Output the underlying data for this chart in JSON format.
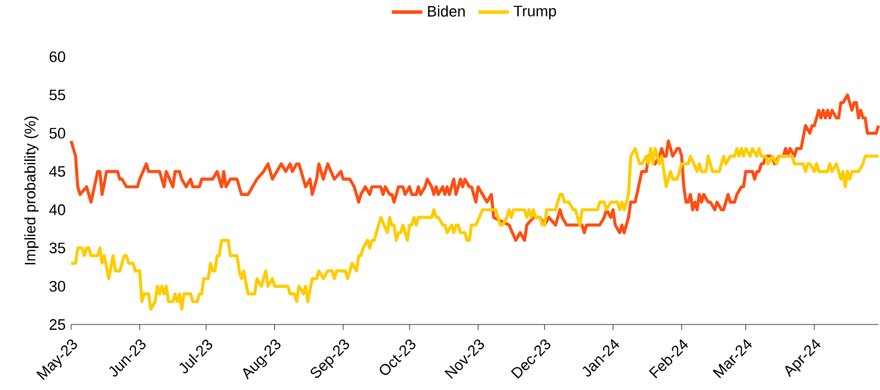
{
  "chart_data": {
    "type": "line",
    "ylabel": "Implied probability (%)",
    "legend": "top",
    "xlim": [
      "2023-05-01",
      "2024-04-30"
    ],
    "ylim": [
      25,
      60
    ],
    "yticks": [
      25,
      30,
      35,
      40,
      45,
      50,
      55,
      60
    ],
    "xticks": [
      {
        "value": "2023-05-01",
        "label": "May-23"
      },
      {
        "value": "2023-06-01",
        "label": "Jun-23"
      },
      {
        "value": "2023-07-01",
        "label": "Jul-23"
      },
      {
        "value": "2023-08-01",
        "label": "Aug-23"
      },
      {
        "value": "2023-09-01",
        "label": "Sep-23"
      },
      {
        "value": "2023-10-01",
        "label": "Oct-23"
      },
      {
        "value": "2023-11-01",
        "label": "Nov-23"
      },
      {
        "value": "2023-12-01",
        "label": "Dec-23"
      },
      {
        "value": "2024-01-01",
        "label": "Jan-24"
      },
      {
        "value": "2024-02-01",
        "label": "Feb-24"
      },
      {
        "value": "2024-03-01",
        "label": "Mar-24"
      },
      {
        "value": "2024-04-01",
        "label": "Apr-24"
      }
    ],
    "series": [
      {
        "name": "Biden",
        "color": "#ff4e14",
        "x": [
          "2023-05-01",
          "2023-05-03",
          "2023-05-04",
          "2023-05-05",
          "2023-05-08",
          "2023-05-10",
          "2023-05-13",
          "2023-05-14",
          "2023-05-15",
          "2023-05-17",
          "2023-05-22",
          "2023-05-23",
          "2023-05-24",
          "2023-05-26",
          "2023-05-31",
          "2023-06-01",
          "2023-06-04",
          "2023-06-05",
          "2023-06-10",
          "2023-06-12",
          "2023-06-13",
          "2023-06-16",
          "2023-06-17",
          "2023-06-19",
          "2023-06-20",
          "2023-06-22",
          "2023-06-24",
          "2023-06-25",
          "2023-06-28",
          "2023-06-29",
          "2023-07-04",
          "2023-07-06",
          "2023-07-08",
          "2023-07-09",
          "2023-07-10",
          "2023-07-12",
          "2023-07-15",
          "2023-07-17",
          "2023-07-20",
          "2023-07-22",
          "2023-07-24",
          "2023-07-27",
          "2023-07-29",
          "2023-07-31",
          "2023-08-02",
          "2023-08-04",
          "2023-08-06",
          "2023-08-08",
          "2023-08-09",
          "2023-08-11",
          "2023-08-12",
          "2023-08-15",
          "2023-08-17",
          "2023-08-18",
          "2023-08-20",
          "2023-08-21",
          "2023-08-23",
          "2023-08-25",
          "2023-08-28",
          "2023-08-31",
          "2023-09-01",
          "2023-09-04",
          "2023-09-06",
          "2023-09-08",
          "2023-09-09",
          "2023-09-11",
          "2023-09-13",
          "2023-09-14",
          "2023-09-18",
          "2023-09-19",
          "2023-09-20",
          "2023-09-22",
          "2023-09-23",
          "2023-09-24",
          "2023-09-26",
          "2023-09-28",
          "2023-09-29",
          "2023-10-01",
          "2023-10-02",
          "2023-10-04",
          "2023-10-05",
          "2023-10-06",
          "2023-10-08",
          "2023-10-09",
          "2023-10-11",
          "2023-10-12",
          "2023-10-13",
          "2023-10-14",
          "2023-10-16",
          "2023-10-17",
          "2023-10-18",
          "2023-10-19",
          "2023-10-21",
          "2023-10-22",
          "2023-10-24",
          "2023-10-25",
          "2023-10-26",
          "2023-10-28",
          "2023-10-29",
          "2023-10-31",
          "2023-11-01",
          "2023-11-03",
          "2023-11-05",
          "2023-11-07",
          "2023-11-08",
          "2023-11-15",
          "2023-11-18",
          "2023-11-20",
          "2023-11-22",
          "2023-11-23",
          "2023-11-26",
          "2023-11-29",
          "2023-12-01",
          "2023-12-03",
          "2023-12-06",
          "2023-12-08",
          "2023-12-09",
          "2023-12-11",
          "2023-12-18",
          "2023-12-19",
          "2023-12-20",
          "2023-12-26",
          "2023-12-28",
          "2023-12-29",
          "2023-12-31",
          "2024-01-01",
          "2024-01-02",
          "2024-01-04",
          "2024-01-05",
          "2024-01-06",
          "2024-01-08",
          "2024-01-09",
          "2024-01-11",
          "2024-01-14",
          "2024-01-16",
          "2024-01-17",
          "2024-01-18",
          "2024-01-20",
          "2024-01-22",
          "2024-01-23",
          "2024-01-24",
          "2024-01-25",
          "2024-01-26",
          "2024-01-28",
          "2024-01-30",
          "2024-01-31",
          "2024-02-01",
          "2024-02-02",
          "2024-02-03",
          "2024-02-04",
          "2024-02-05",
          "2024-02-06",
          "2024-02-07",
          "2024-02-08",
          "2024-02-09",
          "2024-02-10",
          "2024-02-11",
          "2024-02-13",
          "2024-02-14",
          "2024-02-16",
          "2024-02-17",
          "2024-02-19",
          "2024-02-20",
          "2024-02-22",
          "2024-02-23",
          "2024-02-25",
          "2024-02-26",
          "2024-02-28",
          "2024-02-29",
          "2024-03-01",
          "2024-03-04",
          "2024-03-05",
          "2024-03-06",
          "2024-03-07",
          "2024-03-08",
          "2024-03-09",
          "2024-03-10",
          "2024-03-13",
          "2024-03-14",
          "2024-03-16",
          "2024-03-18",
          "2024-03-19",
          "2024-03-20",
          "2024-03-21",
          "2024-03-23",
          "2024-03-24",
          "2024-03-26",
          "2024-03-28",
          "2024-03-30",
          "2024-03-31",
          "2024-04-01",
          "2024-04-03",
          "2024-04-04",
          "2024-04-05",
          "2024-04-06",
          "2024-04-07",
          "2024-04-08",
          "2024-04-09",
          "2024-04-11",
          "2024-04-12",
          "2024-04-13",
          "2024-04-14",
          "2024-04-16",
          "2024-04-18",
          "2024-04-19",
          "2024-04-20",
          "2024-04-21",
          "2024-04-22",
          "2024-04-23",
          "2024-04-24",
          "2024-04-25",
          "2024-04-29",
          "2024-04-30"
        ],
        "values": [
          49,
          47,
          43,
          42,
          43,
          41,
          45,
          45,
          42,
          45,
          45,
          44,
          44,
          43,
          43,
          44,
          46,
          45,
          45,
          43,
          45,
          43,
          45,
          45,
          44,
          43,
          44,
          43,
          43,
          44,
          44,
          45,
          43,
          45,
          43,
          44,
          44,
          42,
          42,
          43,
          44,
          45,
          46,
          44,
          45,
          46,
          45,
          46,
          45,
          46,
          46,
          43,
          44,
          42,
          44,
          46,
          44,
          46,
          44,
          45,
          44,
          44,
          43,
          41,
          42,
          43,
          42,
          43,
          43,
          42,
          43,
          42,
          42,
          41,
          43,
          43,
          42,
          43,
          42,
          42,
          43,
          42,
          43,
          44,
          43,
          42,
          43,
          42,
          43,
          42,
          43,
          42,
          44,
          42,
          44,
          43,
          44,
          43,
          43,
          41,
          43,
          42,
          41,
          42,
          39,
          38,
          36,
          37,
          36,
          38,
          39,
          39,
          38,
          39,
          38,
          40,
          39,
          38,
          38,
          37,
          38,
          38,
          39,
          40,
          39,
          40,
          38,
          37,
          38,
          37,
          39,
          41,
          41,
          45,
          45,
          47,
          47,
          46,
          47,
          48,
          47,
          47,
          49,
          47,
          48,
          48,
          47,
          43,
          41,
          41,
          42,
          40,
          41,
          40,
          42,
          41,
          42,
          41,
          41,
          40,
          41,
          40,
          40,
          42,
          41,
          41,
          42,
          43,
          43,
          45,
          45,
          44,
          45,
          45,
          46,
          46,
          47,
          47,
          46,
          47,
          47,
          48,
          47,
          48,
          47,
          48,
          48,
          51,
          50,
          51,
          51,
          53,
          52,
          53,
          52,
          53,
          52,
          53,
          52,
          52,
          54,
          54,
          55,
          53,
          54,
          54,
          52,
          53,
          52,
          52,
          50,
          50,
          51
        ]
      },
      {
        "name": "Trump",
        "color": "#ffcc00",
        "x": [
          "2023-05-01",
          "2023-05-03",
          "2023-05-04",
          "2023-05-06",
          "2023-05-07",
          "2023-05-08",
          "2023-05-09",
          "2023-05-10",
          "2023-05-13",
          "2023-05-14",
          "2023-05-15",
          "2023-05-16",
          "2023-05-18",
          "2023-05-20",
          "2023-05-21",
          "2023-05-23",
          "2023-05-24",
          "2023-05-25",
          "2023-05-26",
          "2023-05-27",
          "2023-05-29",
          "2023-05-30",
          "2023-06-01",
          "2023-06-02",
          "2023-06-03",
          "2023-06-05",
          "2023-06-06",
          "2023-06-08",
          "2023-06-09",
          "2023-06-10",
          "2023-06-11",
          "2023-06-12",
          "2023-06-13",
          "2023-06-14",
          "2023-06-16",
          "2023-06-17",
          "2023-06-18",
          "2023-06-19",
          "2023-06-20",
          "2023-06-21",
          "2023-06-24",
          "2023-06-25",
          "2023-06-27",
          "2023-06-28",
          "2023-06-29",
          "2023-06-30",
          "2023-07-02",
          "2023-07-03",
          "2023-07-04",
          "2023-07-05",
          "2023-07-06",
          "2023-07-07",
          "2023-07-08",
          "2023-07-11",
          "2023-07-12",
          "2023-07-15",
          "2023-07-16",
          "2023-07-17",
          "2023-07-18",
          "2023-07-20",
          "2023-07-23",
          "2023-07-24",
          "2023-07-26",
          "2023-07-28",
          "2023-07-29",
          "2023-07-31",
          "2023-08-01",
          "2023-08-07",
          "2023-08-08",
          "2023-08-10",
          "2023-08-11",
          "2023-08-12",
          "2023-08-14",
          "2023-08-15",
          "2023-08-16",
          "2023-08-18",
          "2023-08-20",
          "2023-08-21",
          "2023-08-23",
          "2023-08-25",
          "2023-08-27",
          "2023-08-28",
          "2023-08-29",
          "2023-09-02",
          "2023-09-03",
          "2023-09-05",
          "2023-09-07",
          "2023-09-08",
          "2023-09-09",
          "2023-09-10",
          "2023-09-12",
          "2023-09-13",
          "2023-09-14",
          "2023-09-15",
          "2023-09-18",
          "2023-09-21",
          "2023-09-22",
          "2023-09-23",
          "2023-09-24",
          "2023-09-25",
          "2023-09-26",
          "2023-09-27",
          "2023-09-28",
          "2023-09-30",
          "2023-10-01",
          "2023-10-02",
          "2023-10-03",
          "2023-10-04",
          "2023-10-05",
          "2023-10-11",
          "2023-10-12",
          "2023-10-13",
          "2023-10-14",
          "2023-10-16",
          "2023-10-17",
          "2023-10-18",
          "2023-10-20",
          "2023-10-21",
          "2023-10-22",
          "2023-10-23",
          "2023-10-24",
          "2023-10-26",
          "2023-10-27",
          "2023-10-28",
          "2023-10-29",
          "2023-10-31",
          "2023-11-03",
          "2023-11-09",
          "2023-11-11",
          "2023-11-12",
          "2023-11-14",
          "2023-11-15",
          "2023-11-16",
          "2023-11-17",
          "2023-11-22",
          "2023-11-23",
          "2023-11-24",
          "2023-11-25",
          "2023-11-26",
          "2023-11-27",
          "2023-11-29",
          "2023-11-30",
          "2023-12-01",
          "2023-12-02",
          "2023-12-06",
          "2023-12-08",
          "2023-12-09",
          "2023-12-10",
          "2023-12-12",
          "2023-12-14",
          "2023-12-15",
          "2023-12-17",
          "2023-12-18",
          "2023-12-25",
          "2023-12-26",
          "2023-12-28",
          "2023-12-29",
          "2023-12-31",
          "2024-01-03",
          "2024-01-04",
          "2024-01-05",
          "2024-01-06",
          "2024-01-07",
          "2024-01-08",
          "2024-01-09",
          "2024-01-11",
          "2024-01-12",
          "2024-01-13",
          "2024-01-14",
          "2024-01-16",
          "2024-01-17",
          "2024-01-18",
          "2024-01-19",
          "2024-01-20",
          "2024-01-22",
          "2024-01-23",
          "2024-01-24",
          "2024-01-25",
          "2024-01-27",
          "2024-01-28",
          "2024-01-30",
          "2024-02-01",
          "2024-02-04",
          "2024-02-05",
          "2024-02-08",
          "2024-02-09",
          "2024-02-10",
          "2024-02-12",
          "2024-02-13",
          "2024-02-15",
          "2024-02-18",
          "2024-02-20",
          "2024-02-21",
          "2024-02-23",
          "2024-02-25",
          "2024-02-26",
          "2024-02-27",
          "2024-02-28",
          "2024-02-29",
          "2024-03-01",
          "2024-03-03",
          "2024-03-04",
          "2024-03-06",
          "2024-03-07",
          "2024-03-08",
          "2024-03-10",
          "2024-03-11",
          "2024-03-13",
          "2024-03-15",
          "2024-03-16",
          "2024-03-22",
          "2024-03-23",
          "2024-03-27",
          "2024-03-28",
          "2024-03-29",
          "2024-03-30",
          "2024-04-01",
          "2024-04-02",
          "2024-04-03",
          "2024-04-07",
          "2024-04-08",
          "2024-04-09",
          "2024-04-11",
          "2024-04-13",
          "2024-04-14",
          "2024-04-15",
          "2024-04-16",
          "2024-04-17",
          "2024-04-18",
          "2024-04-21",
          "2024-04-23",
          "2024-04-24",
          "2024-04-30"
        ],
        "values": [
          33,
          33,
          35,
          35,
          34,
          35,
          35,
          34,
          34,
          35,
          33,
          34,
          31,
          34,
          32,
          32,
          33,
          34,
          34,
          33,
          33,
          32,
          32,
          28,
          29,
          29,
          27,
          28,
          30,
          29,
          30,
          29,
          30,
          28,
          28,
          29,
          28,
          29,
          27,
          29,
          29,
          28,
          28,
          29,
          29,
          31,
          31,
          33,
          32,
          32,
          34,
          34,
          36,
          36,
          34,
          34,
          32,
          31,
          32,
          29,
          29,
          31,
          30,
          32,
          30,
          31,
          30,
          30,
          29,
          29,
          28,
          30,
          29,
          30,
          28,
          31,
          31,
          32,
          31,
          32,
          32,
          31,
          32,
          32,
          31,
          33,
          32,
          34,
          34,
          35,
          36,
          35,
          36,
          36,
          39,
          37,
          39,
          38,
          38,
          36,
          37,
          37,
          38,
          36,
          38,
          38,
          39,
          38,
          39,
          39,
          40,
          39,
          39,
          38,
          38,
          37,
          38,
          37,
          38,
          38,
          37,
          37,
          36,
          36,
          38,
          38,
          40,
          40,
          38,
          38,
          39,
          40,
          39,
          40,
          40,
          39,
          40,
          39,
          40,
          39,
          39,
          38,
          38,
          40,
          40,
          42,
          42,
          41,
          41,
          40,
          40,
          38,
          40,
          40,
          41,
          41,
          40,
          41,
          41,
          40,
          41,
          40,
          41,
          42,
          47,
          48,
          47,
          46,
          46,
          47,
          46,
          48,
          46,
          48,
          46,
          47,
          45,
          43,
          45,
          44,
          44,
          46,
          46,
          47,
          45,
          46,
          45,
          45,
          47,
          45,
          45,
          47,
          46,
          47,
          47,
          48,
          47,
          48,
          47,
          48,
          47,
          48,
          47,
          48,
          47,
          47,
          46,
          47,
          46,
          47,
          47,
          46,
          46,
          45,
          46,
          46,
          45,
          46,
          45,
          45,
          46,
          45,
          46,
          44,
          45,
          43,
          45,
          44,
          45,
          45,
          46,
          47,
          47
        ]
      }
    ]
  }
}
